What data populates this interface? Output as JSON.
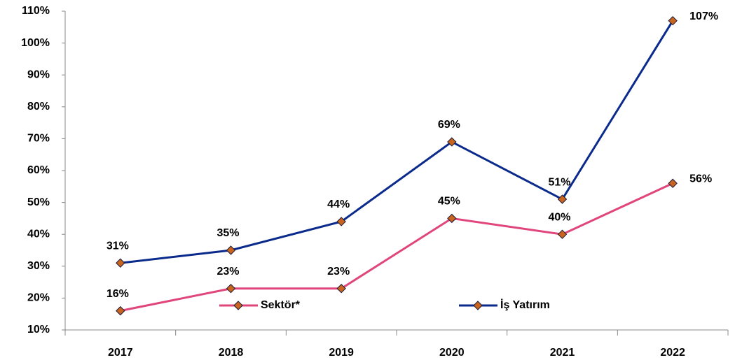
{
  "chart_data": {
    "type": "line",
    "categories": [
      "2017",
      "2018",
      "2019",
      "2020",
      "2021",
      "2022"
    ],
    "series": [
      {
        "name": "Sektör*",
        "color": "#e0457b",
        "marker_color": "#c8641e",
        "values": [
          16,
          23,
          23,
          45,
          40,
          56
        ],
        "value_labels": [
          "16%",
          "23%",
          "23%",
          "45%",
          "40%",
          "56%"
        ]
      },
      {
        "name": "İş Yatırım",
        "color": "#0a2a8c",
        "marker_color": "#c8641e",
        "values": [
          31,
          35,
          44,
          69,
          51,
          107
        ],
        "value_labels": [
          "31%",
          "35%",
          "44%",
          "69%",
          "51%",
          "107%"
        ]
      }
    ],
    "ylim": [
      10,
      110
    ],
    "yticks": [
      {
        "value": 10,
        "label": "10%"
      },
      {
        "value": 20,
        "label": "20%"
      },
      {
        "value": 30,
        "label": "30%"
      },
      {
        "value": 40,
        "label": "40%"
      },
      {
        "value": 50,
        "label": "50%"
      },
      {
        "value": 60,
        "label": "60%"
      },
      {
        "value": 70,
        "label": "70%"
      },
      {
        "value": 80,
        "label": "80%"
      },
      {
        "value": 90,
        "label": "90%"
      },
      {
        "value": 100,
        "label": "100%"
      },
      {
        "value": 110,
        "label": "110%"
      }
    ],
    "grid": false,
    "legend_loc": "lower center"
  }
}
